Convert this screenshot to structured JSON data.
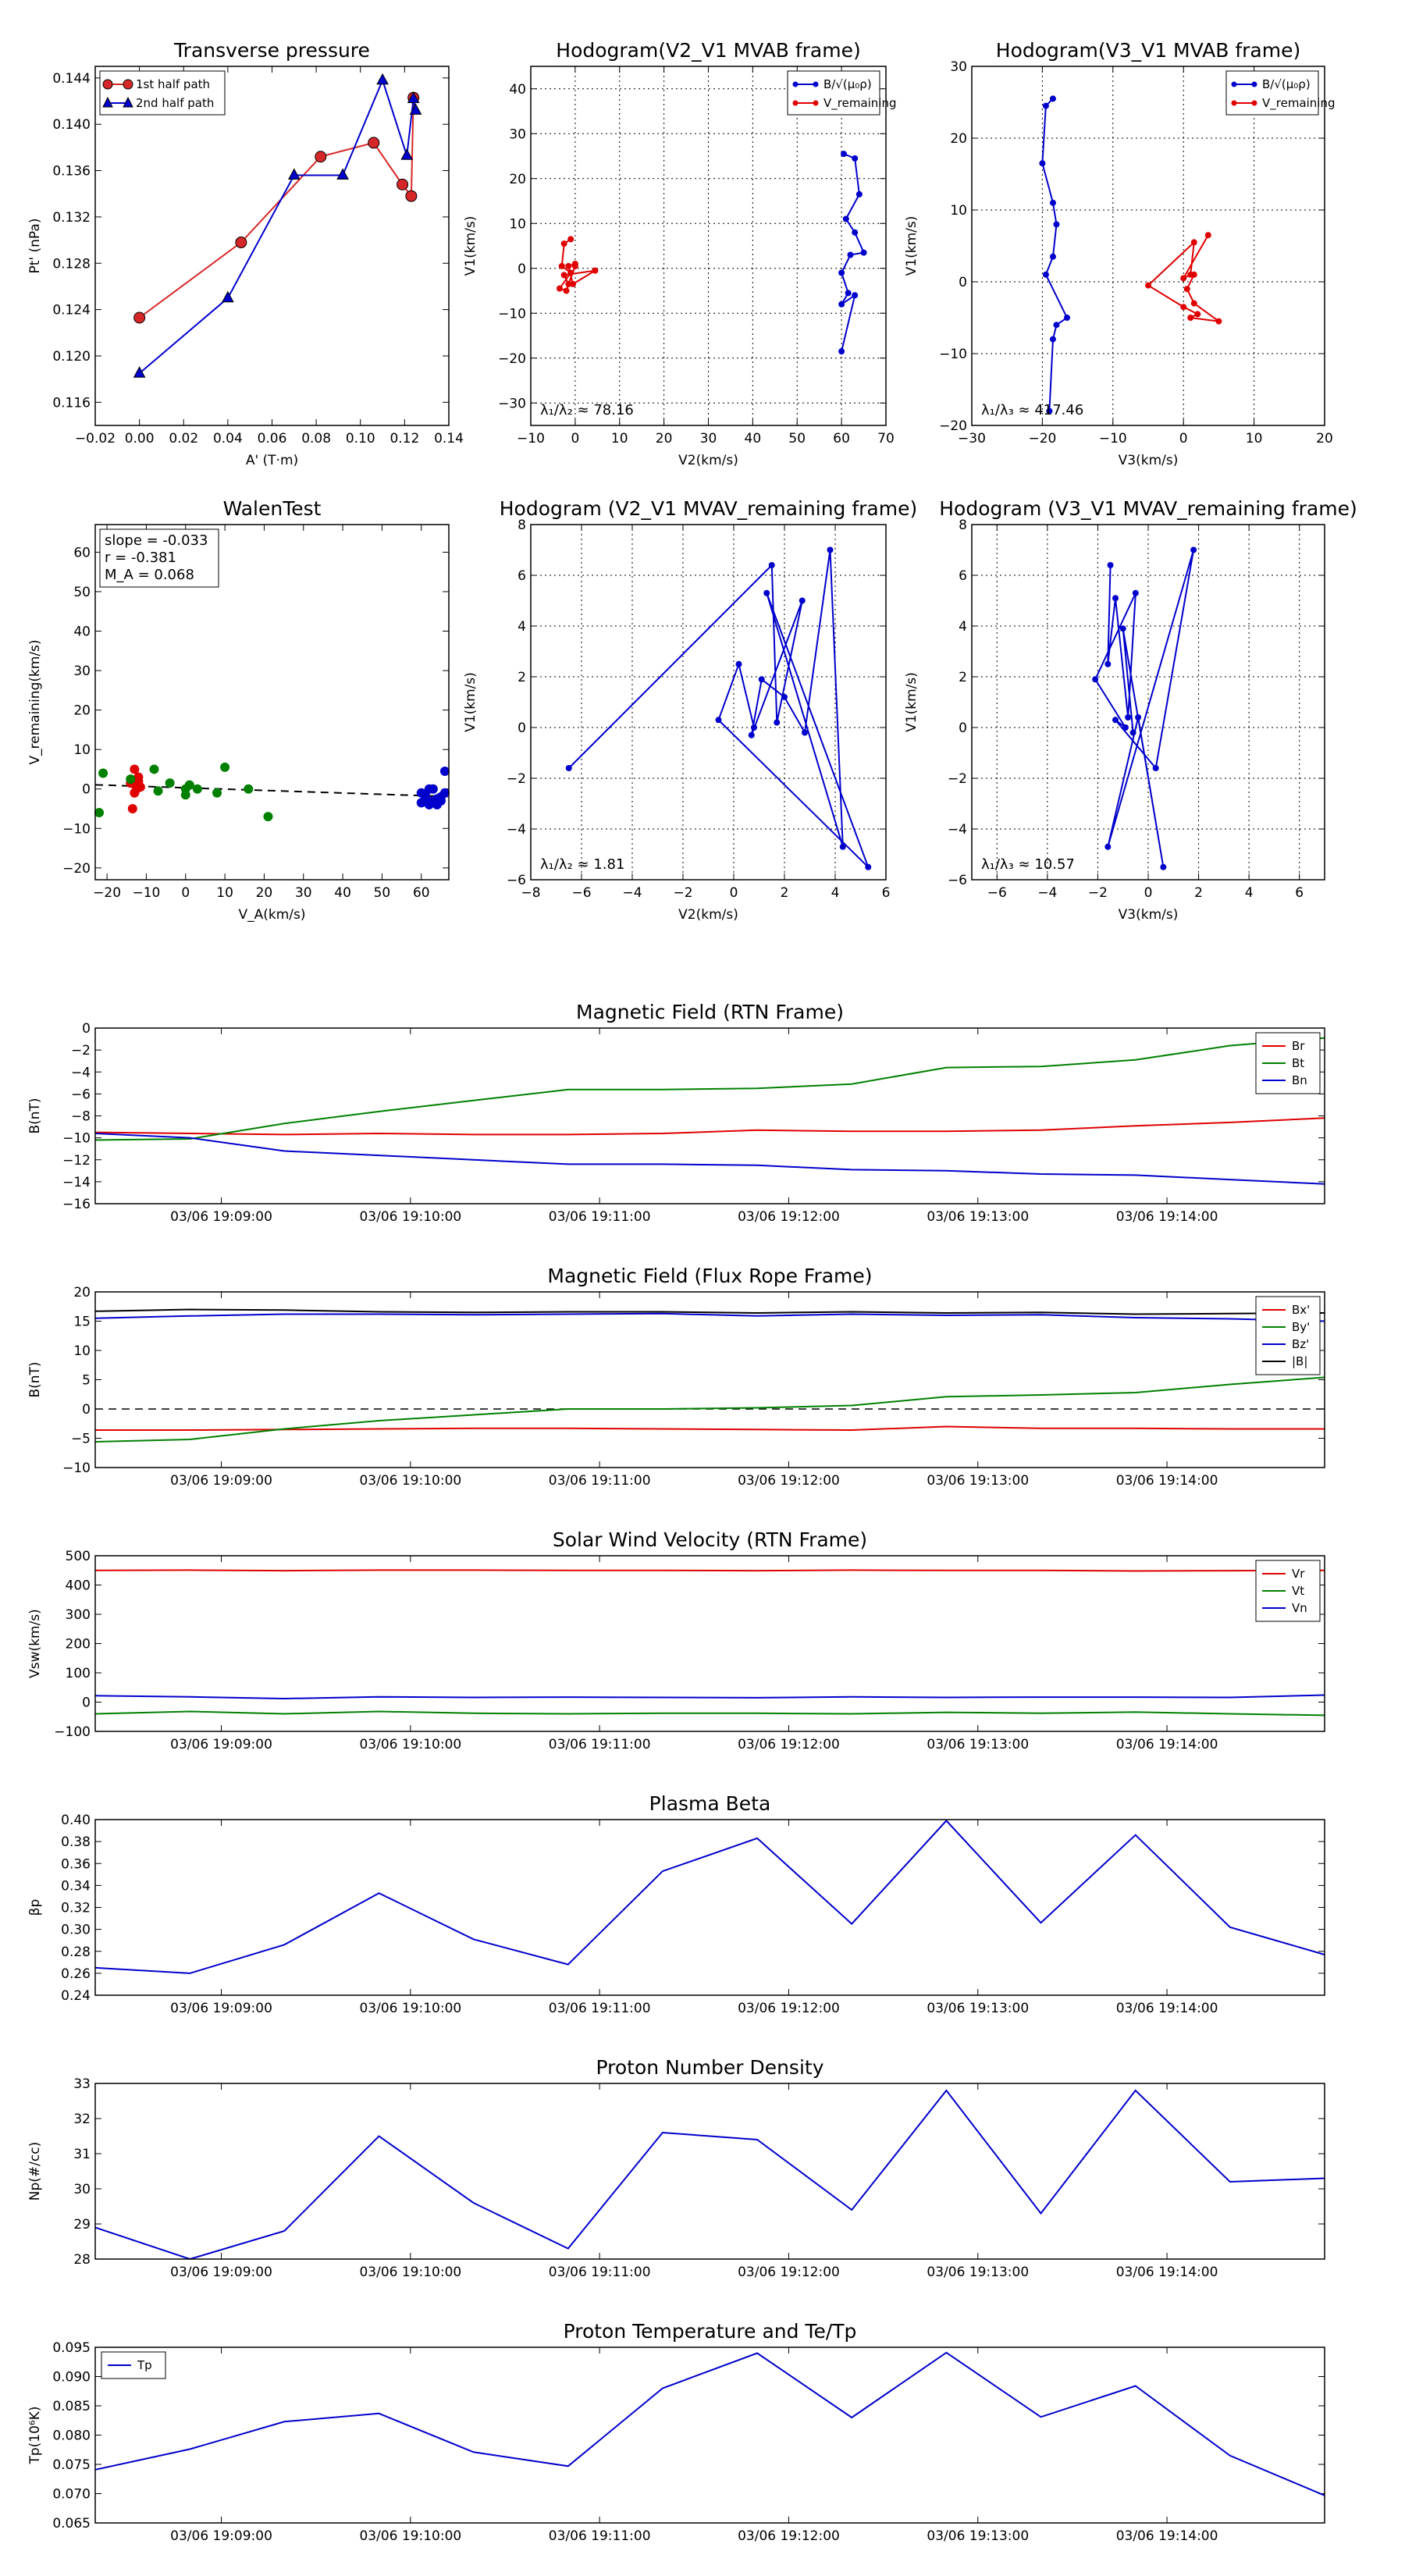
{
  "chart_data": [
    {
      "id": "tp",
      "type": "line",
      "title": "Transverse pressure",
      "xlabel": "A' (T·m)",
      "ylabel": "Pt' (nPa)",
      "xlim": [
        -0.02,
        0.14
      ],
      "ylim": [
        0.114,
        0.145
      ],
      "xticks": [
        -0.02,
        0.0,
        0.02,
        0.04,
        0.06,
        0.08,
        0.1,
        0.12,
        0.14
      ],
      "xtick_labels": [
        "−0.02",
        "0.00",
        "0.02",
        "0.04",
        "0.06",
        "0.08",
        "0.10",
        "0.12",
        "0.14"
      ],
      "yticks": [
        0.116,
        0.12,
        0.124,
        0.128,
        0.132,
        0.136,
        0.14,
        0.144
      ],
      "ytick_labels": [
        "0.116",
        "0.120",
        "0.124",
        "0.128",
        "0.132",
        "0.136",
        "0.140",
        "0.144"
      ],
      "grid": false,
      "legend": "top-left",
      "series": [
        {
          "name": "1st half path",
          "color": "#d62728",
          "marker": "circle",
          "x": [
            0.0,
            0.046,
            0.082,
            0.106,
            0.119,
            0.123,
            0.124
          ],
          "y": [
            0.1233,
            0.1298,
            0.1372,
            0.1384,
            0.1348,
            0.1338,
            0.1423
          ]
        },
        {
          "name": "2nd half path",
          "color": "#0000cc",
          "marker": "triangle",
          "x": [
            0.0,
            0.04,
            0.07,
            0.092,
            0.11,
            0.121,
            0.124,
            0.125
          ],
          "y": [
            0.1185,
            0.125,
            0.1356,
            0.1356,
            0.1438,
            0.1373,
            0.1422,
            0.1412
          ]
        }
      ]
    },
    {
      "id": "h21",
      "type": "line",
      "title": "Hodogram(V2_V1 MVAB frame)",
      "xlabel": "V2(km/s)",
      "ylabel": "V1(km/s)",
      "xlim": [
        -10,
        70
      ],
      "ylim": [
        -35,
        45
      ],
      "xticks": [
        -10,
        0,
        10,
        20,
        30,
        40,
        50,
        60,
        70
      ],
      "xtick_labels": [
        "−10",
        "0",
        "10",
        "20",
        "30",
        "40",
        "50",
        "60",
        "70"
      ],
      "yticks": [
        -30,
        -20,
        -10,
        0,
        10,
        20,
        30,
        40
      ],
      "ytick_labels": [
        "−30",
        "−20",
        "−10",
        "0",
        "10",
        "20",
        "30",
        "40"
      ],
      "grid": true,
      "legend": "top-right",
      "ratio_label": "λ₁/λ₂ ≈ 78.16",
      "series": [
        {
          "name": "B/√(μ₀ρ)",
          "color": "#0000cc",
          "marker": "dot",
          "x": [
            60.5,
            63,
            64,
            61,
            63,
            65,
            62,
            60,
            61.5,
            60,
            63,
            60
          ],
          "y": [
            25.5,
            24.5,
            16.5,
            11,
            8,
            3.5,
            3,
            -1,
            -5.5,
            -8,
            -6,
            -18.5
          ]
        },
        {
          "name": "V_remaining",
          "color": "#e00000",
          "marker": "dot",
          "x": [
            -1,
            -2.5,
            -3,
            -1,
            -3.5,
            -2,
            0,
            -1.5,
            -2.5,
            4.5,
            -0.5,
            -1.5,
            0
          ],
          "y": [
            6.5,
            5.5,
            0.5,
            -1,
            -4.5,
            -5,
            0.5,
            -3.5,
            -1.5,
            -0.5,
            -3.5,
            0.5,
            1
          ]
        }
      ]
    },
    {
      "id": "h31",
      "type": "line",
      "title": "Hodogram(V3_V1 MVAB frame)",
      "xlabel": "V3(km/s)",
      "ylabel": "V1(km/s)",
      "xlim": [
        -30,
        20
      ],
      "ylim": [
        -20,
        30
      ],
      "xticks": [
        -30,
        -20,
        -10,
        0,
        10,
        20
      ],
      "xtick_labels": [
        "−30",
        "−20",
        "−10",
        "0",
        "10",
        "20"
      ],
      "yticks": [
        -20,
        -10,
        0,
        10,
        20,
        30
      ],
      "ytick_labels": [
        "−20",
        "−10",
        "0",
        "10",
        "20",
        "30"
      ],
      "grid": true,
      "legend": "top-right",
      "ratio_label": "λ₁/λ₃ ≈ 417.46",
      "series": [
        {
          "name": "B/√(μ₀ρ)",
          "color": "#0000cc",
          "marker": "dot",
          "x": [
            -18.5,
            -19.5,
            -20,
            -18.5,
            -18,
            -18.5,
            -19.5,
            -16.5,
            -18,
            -18.5,
            -19
          ],
          "y": [
            25.5,
            24.5,
            16.5,
            11,
            8,
            3.5,
            1,
            -5,
            -6,
            -8,
            -18
          ]
        },
        {
          "name": "V_remaining",
          "color": "#e00000",
          "marker": "dot",
          "x": [
            3.5,
            0,
            1,
            1.5,
            -5,
            0,
            2,
            1,
            5,
            1.5,
            0.5,
            1.5
          ],
          "y": [
            6.5,
            0.5,
            1,
            5.5,
            -0.5,
            -3.5,
            -4.5,
            -5,
            -5.5,
            -3,
            -1,
            1
          ]
        }
      ]
    },
    {
      "id": "walen",
      "type": "scatter",
      "title": "WalenTest",
      "xlabel": "V_A(km/s)",
      "ylabel": "V_remaining(km/s)",
      "xlim": [
        -23,
        67
      ],
      "ylim": [
        -23,
        67
      ],
      "xticks": [
        -20,
        -10,
        0,
        10,
        20,
        30,
        40,
        50,
        60
      ],
      "xtick_labels": [
        "−20",
        "−10",
        "0",
        "10",
        "20",
        "30",
        "40",
        "50",
        "60"
      ],
      "yticks": [
        -20,
        -10,
        0,
        10,
        20,
        30,
        40,
        50,
        60
      ],
      "ytick_labels": [
        "−20",
        "−10",
        "0",
        "10",
        "20",
        "30",
        "40",
        "50",
        "60"
      ],
      "grid": false,
      "stats": [
        "slope = -0.033",
        "r = -0.381",
        "M_A = 0.068"
      ],
      "fit": {
        "slope": -0.033,
        "intercept": 0.3
      },
      "series": [
        {
          "name": "red",
          "color": "#e00000",
          "x": [
            -13,
            -12,
            -13.5,
            -12.5,
            -11.5,
            -14,
            -13,
            -12
          ],
          "y": [
            5,
            2,
            -5,
            0,
            0.5,
            1.5,
            -1,
            3
          ]
        },
        {
          "name": "green",
          "color": "#008000",
          "x": [
            -21,
            -22,
            -8,
            -4,
            0,
            0,
            1,
            3,
            8,
            10,
            16,
            21,
            -7,
            -14
          ],
          "y": [
            4,
            -6,
            5,
            1.5,
            0,
            -1.5,
            1,
            0,
            -1,
            5.5,
            0,
            -7,
            -0.5,
            2.5
          ]
        },
        {
          "name": "blue",
          "color": "#0000cc",
          "x": [
            60,
            61,
            62,
            63,
            64,
            65,
            66,
            60,
            61,
            62,
            63,
            64,
            65,
            66
          ],
          "y": [
            -1,
            -2,
            0,
            -3,
            -4,
            -2,
            4.5,
            -3.5,
            -1.5,
            -4,
            0,
            -2.5,
            -3,
            -1
          ]
        }
      ]
    },
    {
      "id": "hr21",
      "type": "line",
      "title": "Hodogram (V2_V1 MVAV_remaining frame)",
      "xlabel": "V2(km/s)",
      "ylabel": "V1(km/s)",
      "xlim": [
        -8,
        6
      ],
      "ylim": [
        -6,
        8
      ],
      "xticks": [
        -8,
        -6,
        -4,
        -2,
        0,
        2,
        4,
        6
      ],
      "xtick_labels": [
        "−8",
        "−6",
        "−4",
        "−2",
        "0",
        "2",
        "4",
        "6"
      ],
      "yticks": [
        -6,
        -4,
        -2,
        0,
        2,
        4,
        6,
        8
      ],
      "ytick_labels": [
        "−6",
        "−4",
        "−2",
        "0",
        "2",
        "4",
        "6",
        "8"
      ],
      "grid": true,
      "ratio_label": "λ₁/λ₂ ≈ 1.81",
      "series": [
        {
          "name": "V",
          "color": "#0000cc",
          "marker": "dot",
          "x": [
            -6.5,
            1.5,
            1.7,
            2.7,
            0.7,
            1.1,
            2.0,
            2.8,
            3.8,
            4.3,
            1.3,
            5.3,
            -0.6,
            0.2,
            0.8
          ],
          "y": [
            -1.6,
            6.4,
            0.2,
            5.0,
            -0.3,
            1.9,
            1.2,
            -0.2,
            7.0,
            -4.7,
            5.3,
            -5.5,
            0.3,
            2.5,
            0.0
          ]
        }
      ]
    },
    {
      "id": "hr31",
      "type": "line",
      "title": "Hodogram (V3_V1 MVAV_remaining frame)",
      "xlabel": "V3(km/s)",
      "ylabel": "V1(km/s)",
      "xlim": [
        -7,
        7
      ],
      "ylim": [
        -6,
        8
      ],
      "xticks": [
        -6,
        -4,
        -2,
        0,
        2,
        4,
        6
      ],
      "xtick_labels": [
        "−6",
        "−4",
        "−2",
        "0",
        "2",
        "4",
        "6"
      ],
      "yticks": [
        -6,
        -4,
        -2,
        0,
        2,
        4,
        6,
        8
      ],
      "ytick_labels": [
        "−6",
        "−4",
        "−2",
        "0",
        "2",
        "4",
        "6",
        "8"
      ],
      "grid": true,
      "ratio_label": "λ₁/λ₃ ≈ 10.57",
      "series": [
        {
          "name": "V",
          "color": "#0000cc",
          "marker": "dot",
          "x": [
            -1.5,
            -1.6,
            -1.3,
            -0.8,
            -0.5,
            -2.1,
            -0.9,
            -1.3,
            0.3,
            1.8,
            -1.6,
            -0.4,
            0.6,
            -1.0,
            -0.6
          ],
          "y": [
            6.4,
            2.5,
            5.1,
            0.4,
            5.3,
            1.9,
            0.0,
            0.3,
            -1.6,
            7.0,
            -4.7,
            0.4,
            -5.5,
            3.9,
            -0.2
          ]
        }
      ]
    },
    {
      "id": "bfield_rtn",
      "type": "line",
      "title": "Magnetic Field (RTN Frame)",
      "ylabel": "B(nT)",
      "ylim": [
        -16,
        0
      ],
      "yticks": [
        -16,
        -14,
        -12,
        -10,
        -8,
        -6,
        -4,
        -2,
        0
      ],
      "ytick_labels": [
        "−16",
        "−14",
        "−12",
        "−10",
        "−8",
        "−6",
        "−4",
        "−2",
        "0"
      ],
      "legend": "top-right",
      "series": [
        {
          "name": "Br",
          "color": "#e00000",
          "y": [
            -9.5,
            -9.6,
            -9.7,
            -9.6,
            -9.7,
            -9.7,
            -9.6,
            -9.3,
            -9.4,
            -9.4,
            -9.3,
            -8.9,
            -8.6,
            -8.2
          ]
        },
        {
          "name": "Bt",
          "color": "#008000",
          "y": [
            -10.2,
            -10.1,
            -8.7,
            -7.6,
            -6.6,
            -5.6,
            -5.6,
            -5.5,
            -5.1,
            -3.6,
            -3.5,
            -2.9,
            -1.6,
            -0.9
          ]
        },
        {
          "name": "Bn",
          "color": "#0000cc",
          "y": [
            -9.6,
            -10.0,
            -11.2,
            -11.6,
            -12.0,
            -12.4,
            -12.4,
            -12.5,
            -12.9,
            -13.0,
            -13.3,
            -13.4,
            -13.8,
            -14.2
          ]
        }
      ]
    },
    {
      "id": "bfield_fr",
      "type": "line",
      "title": "Magnetic Field (Flux Rope Frame)",
      "ylabel": "B(nT)",
      "ylim": [
        -10,
        20
      ],
      "yticks": [
        -10,
        -5,
        0,
        5,
        10,
        15,
        20
      ],
      "ytick_labels": [
        "−10",
        "−5",
        "0",
        "5",
        "10",
        "15",
        "20"
      ],
      "legend": "top-right",
      "series": [
        {
          "name": "Bx'",
          "color": "#e00000",
          "y": [
            -3.6,
            -3.6,
            -3.5,
            -3.4,
            -3.3,
            -3.3,
            -3.4,
            -3.5,
            -3.6,
            -3.0,
            -3.3,
            -3.3,
            -3.4,
            -3.4
          ]
        },
        {
          "name": "By'",
          "color": "#008000",
          "y": [
            -5.6,
            -5.2,
            -3.4,
            -2.0,
            -1.0,
            0.0,
            0.0,
            0.2,
            0.6,
            2.1,
            2.4,
            2.8,
            4.2,
            5.4
          ]
        },
        {
          "name": "Bz'",
          "color": "#0000cc",
          "y": [
            15.5,
            15.9,
            16.2,
            16.2,
            16.1,
            16.2,
            16.3,
            15.9,
            16.2,
            16.0,
            16.1,
            15.6,
            15.4,
            15.0
          ]
        },
        {
          "name": "|B|",
          "color": "#000000",
          "y": [
            16.7,
            17.0,
            16.9,
            16.6,
            16.5,
            16.6,
            16.6,
            16.4,
            16.6,
            16.4,
            16.5,
            16.2,
            16.3,
            16.4
          ]
        }
      ],
      "zero_line": true
    },
    {
      "id": "vsw",
      "type": "line",
      "title": "Solar Wind Velocity (RTN Frame)",
      "ylabel": "Vsw(km/s)",
      "ylim": [
        -100,
        500
      ],
      "yticks": [
        -100,
        0,
        100,
        200,
        300,
        400,
        500
      ],
      "ytick_labels": [
        "−100",
        "0",
        "100",
        "200",
        "300",
        "400",
        "500"
      ],
      "legend": "top-right",
      "series": [
        {
          "name": "Vr",
          "color": "#e00000",
          "y": [
            450,
            451,
            449,
            451,
            451,
            450,
            450,
            449,
            451,
            450,
            450,
            448,
            449,
            450
          ]
        },
        {
          "name": "Vt",
          "color": "#008000",
          "y": [
            -40,
            -32,
            -40,
            -32,
            -38,
            -40,
            -38,
            -38,
            -40,
            -35,
            -38,
            -34,
            -40,
            -45
          ]
        },
        {
          "name": "Vn",
          "color": "#0000cc",
          "y": [
            22,
            18,
            12,
            18,
            16,
            17,
            16,
            15,
            18,
            16,
            17,
            17,
            16,
            24
          ]
        }
      ]
    },
    {
      "id": "beta",
      "type": "line",
      "title": "Plasma Beta",
      "ylabel": "βp",
      "ylim": [
        0.24,
        0.4
      ],
      "yticks": [
        0.24,
        0.26,
        0.28,
        0.3,
        0.32,
        0.34,
        0.36,
        0.38,
        0.4
      ],
      "ytick_labels": [
        "0.24",
        "0.26",
        "0.28",
        "0.30",
        "0.32",
        "0.34",
        "0.36",
        "0.38",
        "0.40"
      ],
      "series": [
        {
          "name": "beta",
          "color": "#0000cc",
          "y": [
            0.265,
            0.26,
            0.286,
            0.333,
            0.291,
            0.268,
            0.353,
            0.383,
            0.305,
            0.399,
            0.306,
            0.386,
            0.302,
            0.277
          ]
        }
      ]
    },
    {
      "id": "np",
      "type": "line",
      "title": "Proton Number Density",
      "ylabel": "Np(#/cc)",
      "ylim": [
        28,
        33
      ],
      "yticks": [
        28,
        29,
        30,
        31,
        32,
        33
      ],
      "ytick_labels": [
        "28",
        "29",
        "30",
        "31",
        "32",
        "33"
      ],
      "series": [
        {
          "name": "Np",
          "color": "#0000cc",
          "y": [
            28.9,
            28.0,
            28.8,
            31.5,
            29.6,
            28.3,
            31.6,
            31.4,
            29.4,
            32.8,
            29.3,
            32.8,
            30.2,
            30.3
          ]
        }
      ]
    },
    {
      "id": "tp_temp",
      "type": "line",
      "title": "Proton Temperature and Te/Tp",
      "ylabel": "Tp(10⁶K)",
      "ylim": [
        0.065,
        0.095
      ],
      "yticks": [
        0.065,
        0.07,
        0.075,
        0.08,
        0.085,
        0.09,
        0.095
      ],
      "ytick_labels": [
        "0.065",
        "0.070",
        "0.075",
        "0.080",
        "0.085",
        "0.090",
        "0.095"
      ],
      "legend": "top-left",
      "series": [
        {
          "name": "Tp",
          "color": "#0000cc",
          "y": [
            0.0741,
            0.0776,
            0.0823,
            0.0837,
            0.0771,
            0.0747,
            0.088,
            0.094,
            0.083,
            0.0941,
            0.0831,
            0.0884,
            0.0765,
            0.0697
          ]
        }
      ]
    }
  ],
  "time_axis": {
    "sample_times_min": [
      0,
      0.75,
      1.5,
      2.25,
      3.0,
      3.75,
      4.5,
      5.25,
      6.0,
      6.75,
      7.5,
      8.25,
      9.0,
      9.75
    ],
    "tick_positions_min": [
      1.0,
      2.5,
      4.0,
      5.5,
      7.0,
      8.5
    ],
    "tick_labels": [
      "03/06 19:09:00",
      "03/06 19:10:00",
      "03/06 19:11:00",
      "03/06 19:12:00",
      "03/06 19:13:00",
      "03/06 19:14:00"
    ],
    "xlim_min": [
      0,
      9.75
    ]
  }
}
